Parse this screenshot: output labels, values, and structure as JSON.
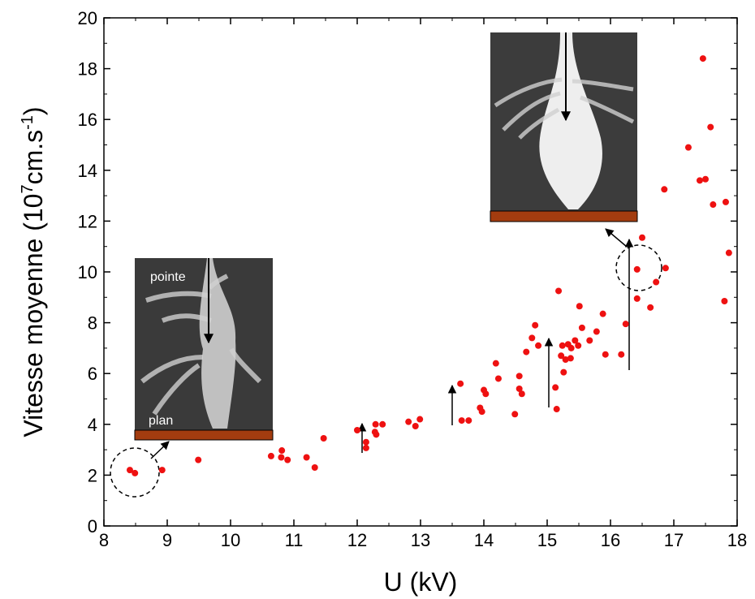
{
  "chart_data": {
    "type": "scatter",
    "x_label": "U (kV)",
    "y_label_parts": [
      "Vitesse moyenne (10",
      "7",
      "cm.s",
      "-1",
      ")"
    ],
    "annotations": [
      "pointe",
      "plan"
    ],
    "xlim": [
      8,
      18
    ],
    "xticks": [
      8,
      9,
      10,
      11,
      12,
      13,
      14,
      15,
      16,
      17,
      18
    ],
    "ylim": [
      0,
      20
    ],
    "yticks": [
      0,
      2,
      4,
      6,
      8,
      10,
      12,
      14,
      16,
      18,
      20
    ],
    "series": [
      {
        "color": "#ee1111",
        "x": [
          8.41,
          8.49,
          8.92,
          9.49,
          10.64,
          10.81,
          10.8,
          10.9,
          11.2,
          11.33,
          11.47,
          12.0,
          12.14,
          12.14,
          12.28,
          12.29,
          12.4,
          12.3,
          12.81,
          12.92,
          12.99,
          13.63,
          13.65,
          13.76,
          13.94,
          14.0,
          13.97,
          14.03,
          14.19,
          14.23,
          14.49,
          14.56,
          14.56,
          14.6,
          14.67,
          14.76,
          14.81,
          14.86,
          15.13,
          15.15,
          15.18,
          15.22,
          15.24,
          15.26,
          15.29,
          15.33,
          15.38,
          15.37,
          15.44,
          15.49,
          15.51,
          15.55,
          15.67,
          15.78,
          15.88,
          15.92,
          16.17,
          16.24,
          16.42,
          16.42,
          16.5,
          16.63,
          16.72,
          16.85,
          16.87,
          17.23,
          17.41,
          17.46,
          17.5,
          17.58,
          17.62,
          17.8,
          17.82,
          17.87
        ],
        "values": [
          2.2,
          2.08,
          2.2,
          2.6,
          2.75,
          2.97,
          2.7,
          2.6,
          2.7,
          2.3,
          3.45,
          3.77,
          3.3,
          3.07,
          3.7,
          4.0,
          4.0,
          3.6,
          4.1,
          3.93,
          4.2,
          5.6,
          4.15,
          4.15,
          4.65,
          5.35,
          4.5,
          5.2,
          6.4,
          5.8,
          4.4,
          5.4,
          5.9,
          5.2,
          6.85,
          7.4,
          7.9,
          7.1,
          5.45,
          4.6,
          9.25,
          6.7,
          7.1,
          6.05,
          6.55,
          7.15,
          7.0,
          6.6,
          7.3,
          7.1,
          8.65,
          7.8,
          7.3,
          7.65,
          8.35,
          6.75,
          6.75,
          7.95,
          10.1,
          8.95,
          11.35,
          8.6,
          9.6,
          13.25,
          10.15,
          14.9,
          13.6,
          18.4,
          13.65,
          15.7,
          12.65,
          8.85,
          12.75,
          10.75
        ]
      }
    ]
  }
}
